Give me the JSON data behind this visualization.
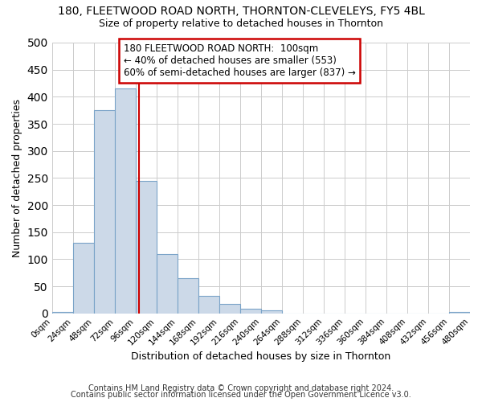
{
  "title1": "180, FLEETWOOD ROAD NORTH, THORNTON-CLEVELEYS, FY5 4BL",
  "title2": "Size of property relative to detached houses in Thornton",
  "xlabel": "Distribution of detached houses by size in Thornton",
  "ylabel": "Number of detached properties",
  "footer1": "Contains HM Land Registry data © Crown copyright and database right 2024.",
  "footer2": "Contains public sector information licensed under the Open Government Licence v3.0.",
  "bin_edges": [
    0,
    24,
    48,
    72,
    96,
    120,
    144,
    168,
    192,
    216,
    240,
    264,
    288,
    312,
    336,
    360,
    384,
    408,
    432,
    456,
    480
  ],
  "bar_heights": [
    2,
    130,
    375,
    415,
    245,
    110,
    65,
    32,
    17,
    8,
    5,
    0,
    0,
    0,
    0,
    0,
    0,
    0,
    0,
    2
  ],
  "bar_color": "#ccd9e8",
  "bar_edge_color": "#7aa3c8",
  "property_line_x": 100,
  "property_line_color": "#cc0000",
  "annotation_text": "180 FLEETWOOD ROAD NORTH:  100sqm\n← 40% of detached houses are smaller (553)\n60% of semi-detached houses are larger (837) →",
  "annotation_box_color": "#ffffff",
  "annotation_box_edge_color": "#cc0000",
  "ylim": [
    0,
    500
  ],
  "xlim": [
    0,
    480
  ],
  "background_color": "#ffffff",
  "plot_background": "#ffffff",
  "grid_color": "#cccccc",
  "tick_labels": [
    "0sqm",
    "24sqm",
    "48sqm",
    "72sqm",
    "96sqm",
    "120sqm",
    "144sqm",
    "168sqm",
    "192sqm",
    "216sqm",
    "240sqm",
    "264sqm",
    "288sqm",
    "312sqm",
    "336sqm",
    "360sqm",
    "384sqm",
    "408sqm",
    "432sqm",
    "456sqm",
    "480sqm"
  ]
}
